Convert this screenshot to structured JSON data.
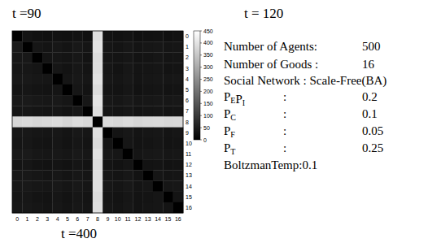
{
  "chart_data": {
    "type": "heatmap",
    "title": "t =90",
    "categories": [
      "0",
      "1",
      "2",
      "3",
      "4",
      "5",
      "6",
      "7",
      "8",
      "9",
      "10",
      "11",
      "12",
      "13",
      "14",
      "15",
      "16"
    ],
    "y_categories": [
      "0",
      "1",
      "2",
      "3",
      "4",
      "5",
      "6",
      "7",
      "8",
      "9",
      "10",
      "11",
      "12",
      "13",
      "14",
      "15",
      "16"
    ],
    "cells": [
      [
        0,
        35,
        30,
        28,
        32,
        30,
        34,
        29,
        395,
        31,
        30,
        33,
        28,
        30,
        32,
        29,
        31
      ],
      [
        45,
        0,
        38,
        35,
        40,
        36,
        42,
        37,
        400,
        39,
        36,
        41,
        35,
        38,
        40,
        37,
        39
      ],
      [
        40,
        42,
        0,
        36,
        38,
        35,
        40,
        34,
        390,
        37,
        35,
        39,
        33,
        36,
        38,
        35,
        37
      ],
      [
        38,
        40,
        37,
        0,
        39,
        34,
        41,
        36,
        392,
        38,
        34,
        40,
        35,
        37,
        39,
        34,
        36
      ],
      [
        42,
        44,
        40,
        38,
        0,
        37,
        43,
        39,
        398,
        41,
        37,
        42,
        36,
        39,
        41,
        38,
        40
      ],
      [
        36,
        39,
        35,
        33,
        37,
        0,
        38,
        34,
        388,
        36,
        33,
        38,
        32,
        35,
        37,
        33,
        35
      ],
      [
        44,
        46,
        42,
        40,
        44,
        39,
        0,
        41,
        402,
        43,
        39,
        44,
        38,
        41,
        43,
        40,
        42
      ],
      [
        39,
        41,
        37,
        35,
        39,
        34,
        40,
        0,
        394,
        38,
        35,
        39,
        34,
        37,
        39,
        35,
        37
      ],
      [
        380,
        385,
        378,
        382,
        386,
        376,
        388,
        381,
        0,
        384,
        379,
        387,
        377,
        383,
        385,
        380,
        382
      ],
      [
        41,
        43,
        39,
        37,
        41,
        36,
        42,
        38,
        396,
        0,
        36,
        41,
        35,
        38,
        40,
        36,
        38
      ],
      [
        37,
        40,
        36,
        34,
        38,
        33,
        39,
        35,
        389,
        37,
        0,
        38,
        33,
        36,
        38,
        34,
        36
      ],
      [
        43,
        45,
        41,
        39,
        43,
        38,
        44,
        40,
        400,
        42,
        38,
        0,
        37,
        40,
        42,
        39,
        41
      ],
      [
        35,
        38,
        34,
        32,
        36,
        31,
        37,
        33,
        386,
        35,
        32,
        37,
        0,
        34,
        36,
        32,
        34
      ],
      [
        40,
        42,
        38,
        36,
        40,
        35,
        41,
        37,
        393,
        39,
        35,
        40,
        34,
        0,
        39,
        35,
        37
      ],
      [
        42,
        44,
        40,
        38,
        42,
        37,
        43,
        39,
        397,
        41,
        37,
        42,
        36,
        39,
        0,
        38,
        40
      ],
      [
        38,
        40,
        36,
        34,
        38,
        33,
        39,
        35,
        390,
        37,
        34,
        38,
        33,
        36,
        38,
        0,
        36
      ],
      [
        40,
        42,
        38,
        36,
        40,
        35,
        41,
        37,
        394,
        39,
        35,
        40,
        34,
        37,
        39,
        36,
        0
      ]
    ],
    "color_range": [
      0,
      450
    ],
    "color_ticks": [
      0,
      50,
      100,
      150,
      200,
      250,
      300,
      350,
      400,
      450
    ],
    "tick_labels": true
  },
  "labels": {
    "top": "t = 120",
    "bottom": "t =400"
  },
  "parameters": [
    {
      "label": [
        {
          "text": "Number of Agents:"
        }
      ],
      "value": 500
    },
    {
      "label": [
        {
          "text": "Number of Goods :"
        }
      ],
      "value": 16
    },
    {
      "label": [
        {
          "text": "Social Network :  Scale-Free(BA)"
        }
      ]
    },
    {
      "label": [
        {
          "text": "P",
          "sub": "E"
        },
        {
          "text": "P",
          "sub": "I"
        }
      ],
      "sep": ":",
      "value": 0.2
    },
    {
      "label": [
        {
          "text": "P",
          "sub": "C"
        }
      ],
      "sep": ":",
      "value": 0.1
    },
    {
      "label": [
        {
          "text": "P",
          "sub": "F"
        }
      ],
      "sep": ":",
      "value": 0.05
    },
    {
      "label": [
        {
          "text": "P",
          "sub": "T"
        }
      ],
      "sep": ":",
      "value": 0.25
    },
    {
      "label": [
        {
          "text": "BoltzmanTemp:"
        }
      ],
      "value": 0.1,
      "inline": true
    }
  ]
}
